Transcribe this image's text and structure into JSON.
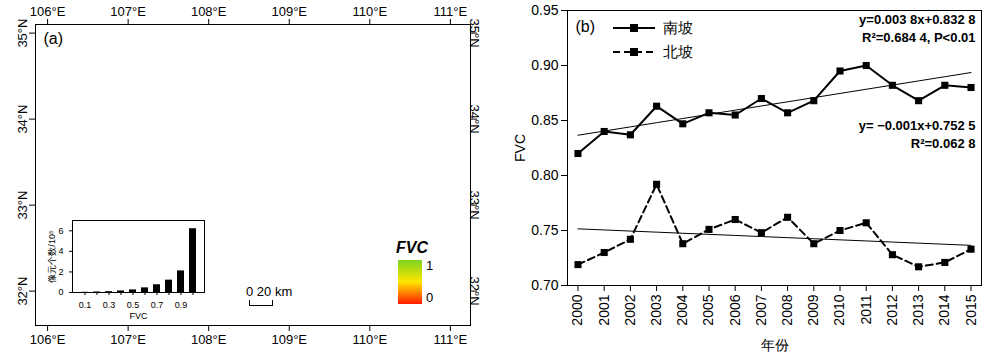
{
  "chart_data": [
    {
      "type": "map",
      "title": "(a)",
      "xlim": [
        105.85,
        111.25
      ],
      "xticks": [
        {
          "value": 106,
          "label": "106°E"
        },
        {
          "value": 107,
          "label": "107°E"
        },
        {
          "value": 108,
          "label": "108°E"
        },
        {
          "value": 109,
          "label": "109°E"
        },
        {
          "value": 110,
          "label": "110°E"
        },
        {
          "value": 111,
          "label": "111°E"
        }
      ],
      "ylim": [
        31.6,
        35.1
      ],
      "yticks": [
        {
          "value": 32,
          "label": "32°N"
        },
        {
          "value": 33,
          "label": "33°N"
        },
        {
          "value": 34,
          "label": "34°N"
        },
        {
          "value": 35,
          "label": "35°N"
        }
      ],
      "color_bar": {
        "label": "FVC",
        "range": [
          0,
          1
        ],
        "ticks": [
          0,
          1
        ],
        "colors": [
          "#ff1a00",
          "#ffe600",
          "#7ed321"
        ]
      },
      "scale_bar": "0 20 km"
    },
    {
      "type": "bar",
      "x_label": "FVC",
      "y_label": "像元个数/10⁵",
      "categories": [
        "0.1",
        null,
        "0.3",
        null,
        "0.5",
        null,
        "0.7",
        null,
        "0.9",
        null
      ],
      "values": [
        0.02,
        0.05,
        0.08,
        0.15,
        0.25,
        0.45,
        0.75,
        1.2,
        2.1,
        6.2
      ],
      "color": "#000000",
      "ylim": [
        0,
        7
      ],
      "yticks": [
        0,
        2,
        4,
        6
      ]
    },
    {
      "type": "line",
      "title": "(b)",
      "x_label": "年份",
      "y_label": "FVC",
      "x": [
        2000,
        2001,
        2002,
        2003,
        2004,
        2005,
        2006,
        2007,
        2008,
        2009,
        2010,
        2011,
        2012,
        2013,
        2014,
        2015
      ],
      "xlim": [
        1999.6,
        2015.4
      ],
      "xticks": [
        2000,
        2001,
        2002,
        2003,
        2004,
        2005,
        2006,
        2007,
        2008,
        2009,
        2010,
        2011,
        2012,
        2013,
        2014,
        2015
      ],
      "ylim": [
        0.7,
        0.95
      ],
      "yticks": [
        {
          "value": 0.7,
          "label": "0.70"
        },
        0.75,
        {
          "value": 0.8,
          "label": "0.80"
        },
        0.85,
        {
          "value": 0.9,
          "label": "0.90"
        },
        0.95
      ],
      "legend": "top-left",
      "series": [
        {
          "name": "南坡",
          "color": "#000000",
          "marker": "square",
          "line_style": "solid",
          "values": [
            0.82,
            0.84,
            0.837,
            0.863,
            0.847,
            0.857,
            0.855,
            0.87,
            0.857,
            0.868,
            0.895,
            0.9,
            0.882,
            0.868,
            0.882,
            0.88
          ],
          "trend": {
            "slope": 0.0038,
            "intercept": 0.8328,
            "equation": "y=0.003 8x+0.832 8",
            "r2": "R²=0.684 4, P<0.01"
          }
        },
        {
          "name": "北坡",
          "color": "#000000",
          "marker": "square",
          "line_style": "dashed",
          "values": [
            0.719,
            0.73,
            0.742,
            0.792,
            0.738,
            0.751,
            0.76,
            0.748,
            0.762,
            0.738,
            0.75,
            0.757,
            0.728,
            0.717,
            0.721,
            0.733
          ],
          "trend": {
            "slope": -0.001,
            "intercept": 0.7525,
            "equation": "y= −0.001x+0.752 5",
            "r2": "R²=0.062 8"
          }
        }
      ]
    }
  ]
}
